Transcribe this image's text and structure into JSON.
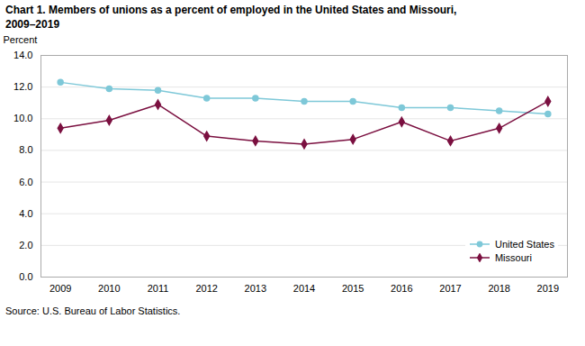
{
  "chart_data": {
    "type": "line",
    "title": "Chart 1. Members of unions as a percent of employed in the United States and Missouri,",
    "subtitle": "2009–2019",
    "y_label": "Percent",
    "source": "Source: U.S. Bureau of Labor Statistics.",
    "x": [
      2009,
      2010,
      2011,
      2012,
      2013,
      2014,
      2015,
      2016,
      2017,
      2018,
      2019
    ],
    "series": [
      {
        "name": "United States",
        "color": "#7EC8D8",
        "marker": "circle",
        "values": [
          12.3,
          11.9,
          11.8,
          11.3,
          11.3,
          11.1,
          11.1,
          10.7,
          10.7,
          10.5,
          10.3
        ]
      },
      {
        "name": "Missouri",
        "color": "#7B1040",
        "marker": "diamond",
        "values": [
          9.4,
          9.9,
          10.9,
          8.9,
          8.6,
          8.4,
          8.7,
          9.8,
          8.6,
          9.4,
          11.1
        ]
      }
    ],
    "xlim": [
      2008.6,
      2019.4
    ],
    "xticks": [
      2009,
      2010,
      2011,
      2012,
      2013,
      2014,
      2015,
      2016,
      2017,
      2018,
      2019
    ],
    "ylim": [
      0.0,
      14.0
    ],
    "yticks": [
      {
        "value": 0,
        "label": "0.0"
      },
      {
        "value": 2,
        "label": "2.0"
      },
      {
        "value": 4,
        "label": "4.0"
      },
      {
        "value": 6,
        "label": "6.0"
      },
      {
        "value": 8,
        "label": "8.0"
      },
      {
        "value": 10,
        "label": "10.0"
      },
      {
        "value": 12,
        "label": "12.0"
      },
      {
        "value": 14,
        "label": "14.0"
      }
    ],
    "grid": true,
    "legend": "lower right"
  }
}
